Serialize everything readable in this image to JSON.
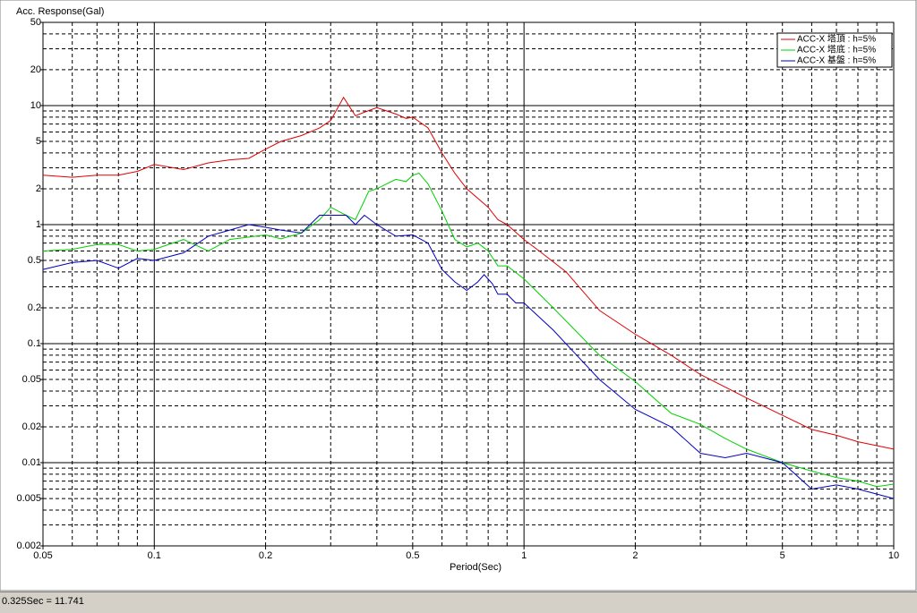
{
  "chart_data": {
    "type": "line",
    "ylabel": "Acc. Response(Gal)",
    "xlabel": "Period(Sec)",
    "xscale": "log",
    "yscale": "log",
    "xlim": [
      0.05,
      10
    ],
    "ylim": [
      0.002,
      50
    ],
    "xticks": [
      0.05,
      0.1,
      0.2,
      0.5,
      1,
      2,
      5,
      10
    ],
    "yticks": [
      50,
      20,
      10,
      5,
      2,
      1,
      0.5,
      0.2,
      0.1,
      0.05,
      0.02,
      0.01,
      0.005,
      0.002
    ],
    "xgrid": [
      0.05,
      0.06,
      0.07,
      0.08,
      0.09,
      0.1,
      0.2,
      0.3,
      0.4,
      0.5,
      0.6,
      0.7,
      0.8,
      0.9,
      1,
      2,
      3,
      4,
      5,
      6,
      7,
      8,
      9,
      10
    ],
    "ygrid": [
      0.002,
      0.003,
      0.004,
      0.005,
      0.006,
      0.007,
      0.008,
      0.009,
      0.01,
      0.02,
      0.03,
      0.04,
      0.05,
      0.06,
      0.07,
      0.08,
      0.09,
      0.1,
      0.2,
      0.3,
      0.4,
      0.5,
      0.6,
      0.7,
      0.8,
      0.9,
      1,
      2,
      3,
      4,
      5,
      6,
      7,
      8,
      9,
      10,
      20,
      30,
      40,
      50
    ],
    "legend": "upper right",
    "series": [
      {
        "name": "ACC-X 塔頂 : h=5%",
        "color": "#e00000",
        "x": [
          0.05,
          0.06,
          0.07,
          0.08,
          0.09,
          0.1,
          0.12,
          0.14,
          0.16,
          0.18,
          0.2,
          0.22,
          0.25,
          0.28,
          0.3,
          0.325,
          0.35,
          0.37,
          0.4,
          0.45,
          0.48,
          0.5,
          0.55,
          0.6,
          0.65,
          0.7,
          0.8,
          0.85,
          0.9,
          1,
          1.1,
          1.3,
          1.6,
          2,
          2.5,
          3,
          4,
          5,
          6,
          7,
          8,
          10
        ],
        "values": [
          2.6,
          2.5,
          2.6,
          2.6,
          2.8,
          3.2,
          2.9,
          3.3,
          3.5,
          3.6,
          4.3,
          5.0,
          5.6,
          6.5,
          7.5,
          11.7,
          8.2,
          8.8,
          9.6,
          8.5,
          7.8,
          8,
          6.5,
          4,
          2.7,
          2.0,
          1.4,
          1.1,
          1.0,
          0.75,
          0.6,
          0.4,
          0.19,
          0.12,
          0.08,
          0.055,
          0.035,
          0.025,
          0.019,
          0.017,
          0.015,
          0.013
        ]
      },
      {
        "name": "ACC-X 塔底 : h=5%",
        "color": "#00d000",
        "x": [
          0.05,
          0.06,
          0.07,
          0.08,
          0.09,
          0.1,
          0.12,
          0.14,
          0.16,
          0.2,
          0.22,
          0.25,
          0.28,
          0.3,
          0.33,
          0.35,
          0.38,
          0.4,
          0.45,
          0.48,
          0.5,
          0.52,
          0.55,
          0.6,
          0.65,
          0.7,
          0.75,
          0.8,
          0.85,
          0.9,
          1,
          1.2,
          1.6,
          2,
          2.5,
          3,
          3.5,
          4,
          5,
          6,
          7,
          8,
          9,
          10
        ],
        "values": [
          0.6,
          0.62,
          0.68,
          0.68,
          0.6,
          0.62,
          0.75,
          0.6,
          0.75,
          0.82,
          0.76,
          0.85,
          1.1,
          1.4,
          1.2,
          1.1,
          1.9,
          2.0,
          2.4,
          2.3,
          2.6,
          2.7,
          2.2,
          1.3,
          0.75,
          0.65,
          0.7,
          0.6,
          0.45,
          0.45,
          0.35,
          0.2,
          0.08,
          0.048,
          0.026,
          0.021,
          0.016,
          0.013,
          0.01,
          0.0085,
          0.0075,
          0.007,
          0.0063,
          0.0066
        ]
      },
      {
        "name": "ACC-X 基盤 : h=5%",
        "color": "#0000c0",
        "x": [
          0.05,
          0.06,
          0.07,
          0.08,
          0.09,
          0.1,
          0.12,
          0.14,
          0.16,
          0.18,
          0.2,
          0.22,
          0.25,
          0.28,
          0.3,
          0.33,
          0.35,
          0.37,
          0.4,
          0.45,
          0.5,
          0.55,
          0.6,
          0.65,
          0.7,
          0.75,
          0.78,
          0.82,
          0.85,
          0.9,
          0.95,
          1,
          1.2,
          1.6,
          2,
          2.5,
          3,
          3.5,
          4,
          5,
          6,
          7,
          8,
          10
        ],
        "values": [
          0.42,
          0.48,
          0.5,
          0.43,
          0.52,
          0.5,
          0.58,
          0.8,
          0.9,
          1.0,
          0.95,
          0.9,
          0.85,
          1.2,
          1.2,
          1.2,
          1.0,
          1.2,
          1.0,
          0.8,
          0.82,
          0.7,
          0.42,
          0.33,
          0.28,
          0.33,
          0.38,
          0.32,
          0.26,
          0.26,
          0.22,
          0.22,
          0.13,
          0.05,
          0.028,
          0.02,
          0.012,
          0.011,
          0.012,
          0.01,
          0.006,
          0.0065,
          0.006,
          0.005
        ]
      }
    ]
  },
  "status": "0.325Sec = 11.741"
}
